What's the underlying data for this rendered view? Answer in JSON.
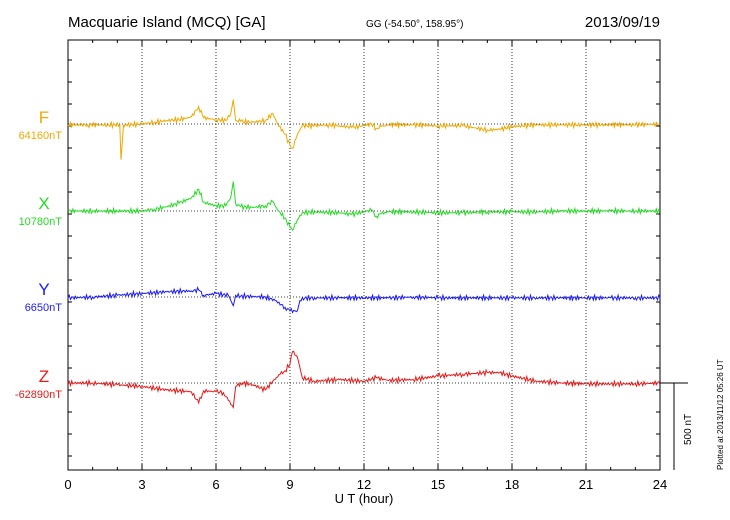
{
  "header": {
    "station": "Macquarie Island (MCQ)  [GA]",
    "coordinates": "GG (-54.50°, 158.95°)",
    "date": "2013/09/19"
  },
  "footer": {
    "plotted_note": "Plotted at 2013/11/12 05:26 UT",
    "scale_label": "500 nT"
  },
  "chart_data": {
    "type": "line",
    "title": "Macquarie Island (MCQ)  [GA]",
    "xlabel": "U T (hour)",
    "xlim": [
      0,
      24
    ],
    "x_ticks": [
      "0",
      "3",
      "6",
      "9",
      "12",
      "15",
      "18",
      "21",
      "24"
    ],
    "grid": "dotted vertical at 3-hour intervals",
    "scale_bar_nT": 500,
    "series": [
      {
        "name": "F",
        "baseline_label": "64160nT",
        "color": "#f0a800",
        "x": [
          0,
          0.8,
          1.6,
          2.1,
          2.15,
          2.25,
          2.3,
          3,
          3.5,
          4,
          4.5,
          5,
          5.3,
          5.5,
          6,
          6.4,
          6.6,
          6.7,
          6.8,
          7,
          7.5,
          8,
          8.3,
          8.5,
          8.8,
          9,
          9.1,
          9.3,
          9.5,
          10,
          10.5,
          11,
          11.5,
          12,
          12.3,
          12.5,
          12.7,
          13,
          14,
          15,
          16,
          17,
          17.5,
          18,
          19,
          20,
          21,
          22,
          23,
          24
        ],
        "values": [
          -5,
          -5,
          -5,
          -5,
          -205,
          -5,
          -5,
          0,
          10,
          20,
          25,
          40,
          100,
          35,
          25,
          20,
          60,
          140,
          20,
          15,
          10,
          20,
          60,
          0,
          -60,
          -120,
          -140,
          -60,
          -10,
          -10,
          -5,
          -10,
          -20,
          -10,
          0,
          -25,
          -15,
          -5,
          -5,
          -10,
          -10,
          -35,
          -30,
          -15,
          -5,
          -5,
          -5,
          -5,
          -5,
          0
        ]
      },
      {
        "name": "X",
        "baseline_label": "10780nT",
        "color": "#22dd22",
        "x": [
          0,
          1,
          2,
          3,
          3.5,
          4,
          4.5,
          5,
          5.3,
          5.5,
          6,
          6.4,
          6.6,
          6.7,
          6.8,
          7,
          7.5,
          8,
          8.3,
          8.5,
          8.8,
          9,
          9.1,
          9.3,
          9.5,
          10,
          11,
          11.5,
          12,
          12.3,
          12.5,
          12.7,
          13,
          14,
          15,
          16,
          17,
          18,
          19,
          20,
          21,
          22,
          23,
          24
        ],
        "values": [
          0,
          0,
          0,
          0,
          10,
          25,
          45,
          75,
          125,
          50,
          30,
          30,
          80,
          170,
          40,
          25,
          20,
          30,
          55,
          5,
          -40,
          -95,
          -110,
          -50,
          -10,
          -5,
          -10,
          -20,
          -5,
          5,
          -30,
          -15,
          -5,
          -5,
          -10,
          -10,
          -5,
          -5,
          -5,
          0,
          0,
          0,
          0,
          0
        ]
      },
      {
        "name": "Y",
        "baseline_label": "6650nT",
        "color": "#1a1aff",
        "x": [
          0,
          1,
          2,
          3,
          4,
          5,
          5.3,
          5.5,
          6,
          6.5,
          6.7,
          6.8,
          7,
          8,
          8.4,
          8.8,
          9,
          9.3,
          9.4,
          9.6,
          10,
          11,
          12,
          13,
          14,
          15,
          16,
          17,
          18,
          19,
          20,
          21,
          22,
          23,
          24
        ],
        "values": [
          -5,
          0,
          10,
          20,
          30,
          35,
          40,
          10,
          20,
          10,
          -50,
          10,
          5,
          0,
          -20,
          -60,
          -80,
          -80,
          -20,
          -5,
          -5,
          -5,
          -5,
          -5,
          0,
          -5,
          -5,
          -5,
          -5,
          -5,
          -5,
          -5,
          -5,
          -5,
          -5
        ]
      },
      {
        "name": "Z",
        "baseline_label": "-62890nT",
        "color": "#e81818",
        "x": [
          0,
          1,
          2,
          3,
          4,
          5,
          5.3,
          5.5,
          6,
          6.3,
          6.5,
          6.7,
          6.8,
          7,
          7.5,
          8,
          8.3,
          8.6,
          8.8,
          9,
          9.1,
          9.3,
          9.5,
          10,
          11,
          12,
          12.5,
          13,
          14,
          15,
          16,
          17,
          17.5,
          18,
          19,
          20,
          21,
          22,
          23,
          24
        ],
        "values": [
          0,
          0,
          -10,
          -20,
          -40,
          -50,
          -115,
          -45,
          -50,
          -55,
          -100,
          -140,
          -20,
          0,
          -10,
          -40,
          10,
          50,
          70,
          110,
          180,
          150,
          30,
          10,
          20,
          10,
          30,
          15,
          20,
          40,
          50,
          60,
          60,
          40,
          10,
          0,
          -5,
          -5,
          -5,
          0
        ]
      }
    ]
  }
}
